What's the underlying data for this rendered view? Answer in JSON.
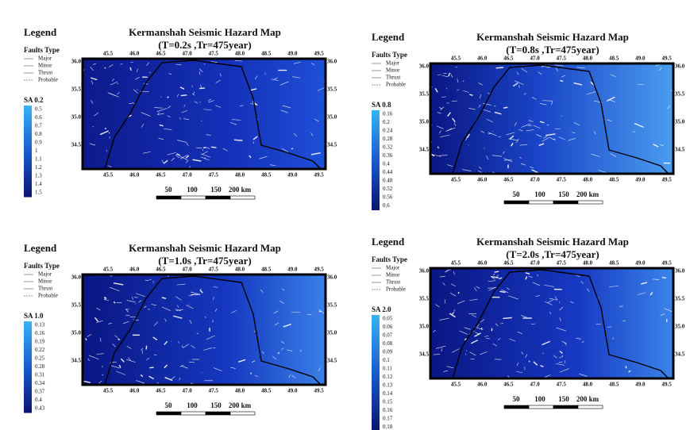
{
  "common": {
    "legend_title": "Legend",
    "faults_title": "Faults Type",
    "fault_types": [
      "Major",
      "Minor",
      "Thrust",
      "Probable"
    ],
    "x_ticks": [
      "45.5",
      "46.0",
      "46.5",
      "47.0",
      "47.5",
      "48.0",
      "48.5",
      "49.0",
      "49.5"
    ],
    "y_ticks": [
      "36.0",
      "35.5",
      "35.0",
      "34.5"
    ],
    "scale_labels": [
      "50",
      "100",
      "150",
      "200 km"
    ]
  },
  "panels": [
    {
      "title": "Kermanshah Seismic Hazard Map",
      "subtitle": "(T=0.2s ,Tr=475year)",
      "sa_title": "SA 0.2",
      "sa_labels": [
        "0.5",
        "0.6",
        "0.7",
        "0.8",
        "0.9",
        "1",
        "1.1",
        "1.2",
        "1.3",
        "1.4",
        "1.5"
      ]
    },
    {
      "title": "Kermanshah Seismic Hazard Map",
      "subtitle": "(T=0.8s ,Tr=475year)",
      "sa_title": "SA 0.8",
      "sa_labels": [
        "0.16",
        "0.2",
        "0.24",
        "0.28",
        "0.32",
        "0.36",
        "0.4",
        "0.44",
        "0.48",
        "0.52",
        "0.56",
        "0.6"
      ]
    },
    {
      "title": "Kermanshah Seismic Hazard Map",
      "subtitle": "(T=1.0s ,Tr=475year)",
      "sa_title": "SA 1.0",
      "sa_labels": [
        "0.13",
        "0.16",
        "0.19",
        "0.22",
        "0.25",
        "0.28",
        "0.31",
        "0.34",
        "0.37",
        "0.4",
        "0.43"
      ]
    },
    {
      "title": "Kermanshah Seismic Hazard Map",
      "subtitle": "(T=2.0s ,Tr=475year)",
      "sa_title": "SA 2.0",
      "sa_labels": [
        "0.05",
        "0.06",
        "0.07",
        "0.08",
        "0.09",
        "0.1",
        "0.11",
        "0.12",
        "0.13",
        "0.14",
        "0.15",
        "0.16",
        "0.17",
        "0.18"
      ]
    }
  ]
}
